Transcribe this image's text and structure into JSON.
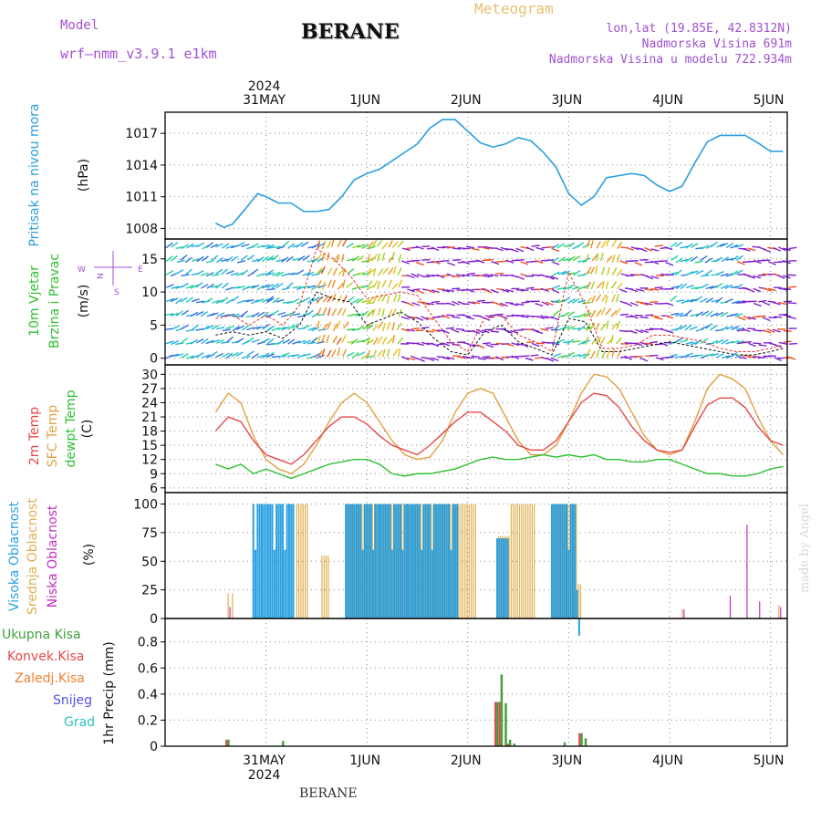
{
  "header": {
    "title": "BERANE",
    "meteogram": "Meteogram",
    "model_label": "Model",
    "model_name": "wrf—nmm_v3.9.1 e1km",
    "lonlat": "lon,lat (19.85E, 42.8312N)",
    "elevation": "Nadmorska Visina 691m",
    "elevation_model": "Nadmorska Visina u modelu 722.934m",
    "footer": "BERANE",
    "made_by": "made by Angel"
  },
  "time_axis": {
    "year": "2024",
    "days": [
      "31MAY",
      "1JUN",
      "2JUN",
      "3JUN",
      "4JUN",
      "5JUN"
    ]
  },
  "colors": {
    "pressure": "#2a9fe0",
    "t2m": "#e84848",
    "tsfc": "#e0a040",
    "dewpt": "#30c030",
    "cloud_high": "#2aa0e0",
    "cloud_mid": "#e0b050",
    "cloud_low": "#c030c0",
    "precip_total": "#40a040",
    "precip_conv": "#e84848",
    "precip_frozen": "#f08030",
    "snow": "#5050e0",
    "grad": "#30c0c0"
  },
  "chart_data": [
    {
      "type": "line",
      "name": "pressure",
      "ylabels": [
        "Pritisak na nivou mora",
        "(hPa)"
      ],
      "yticks": [
        1008,
        1011,
        1014,
        1017
      ],
      "ylim": [
        1007,
        1019
      ],
      "x_hours": [
        0,
        2,
        4,
        7,
        10,
        12,
        15,
        18,
        21,
        24,
        27,
        30,
        33,
        36,
        39,
        42,
        45,
        48,
        51,
        54,
        57,
        60,
        63,
        66,
        69,
        72,
        75,
        78,
        81,
        84,
        87,
        90,
        93,
        96,
        99,
        102,
        105,
        108,
        111,
        114,
        117,
        120,
        123,
        126,
        129,
        132,
        135
      ],
      "values": [
        1008.5,
        1008.1,
        1008.4,
        1009.8,
        1011.3,
        1011.0,
        1010.4,
        1010.4,
        1009.6,
        1009.6,
        1009.8,
        1011.0,
        1012.6,
        1013.2,
        1013.6,
        1014.4,
        1015.2,
        1016.0,
        1017.5,
        1018.3,
        1018.3,
        1017.2,
        1016.1,
        1015.7,
        1016.0,
        1016.6,
        1016.3,
        1015.2,
        1013.8,
        1011.3,
        1010.2,
        1011.0,
        1012.8,
        1013.0,
        1013.2,
        1013.0,
        1012.1,
        1011.5,
        1012.0,
        1014.2,
        1016.2,
        1016.8,
        1016.8,
        1016.8,
        1016.1,
        1015.3,
        1015.3
      ]
    },
    {
      "type": "line",
      "name": "wind",
      "ylabels": [
        "10m Vjetar",
        "Brzina i Pravac",
        "(m/s)"
      ],
      "yticks": [
        0,
        5,
        10,
        15
      ],
      "ylim": [
        -1,
        18
      ],
      "compass": {
        "n": "N",
        "w": "W",
        "e": "E",
        "s": "S"
      },
      "x_hours": [
        0,
        4,
        8,
        12,
        16,
        20,
        24,
        28,
        32,
        36,
        40,
        44,
        48,
        52,
        56,
        60,
        64,
        68,
        72,
        76,
        80,
        84,
        88,
        92,
        96,
        100,
        104,
        108,
        112,
        116,
        120,
        124,
        128,
        132,
        135
      ],
      "speed": [
        3.5,
        4.0,
        3.5,
        4.0,
        3.0,
        5.0,
        10.0,
        9.0,
        8.5,
        5.0,
        6.0,
        7.0,
        5.5,
        3.0,
        1.0,
        0.5,
        4.0,
        5.0,
        2.5,
        1.5,
        0.5,
        6.0,
        5.5,
        1.0,
        1.0,
        1.5,
        2.0,
        2.5,
        2.0,
        1.5,
        1.0,
        0.5,
        0.5,
        1.0,
        1.5
      ],
      "gust": [
        6.0,
        6.5,
        5.0,
        6.5,
        5.0,
        8.0,
        16.5,
        15.0,
        12.5,
        9.0,
        9.5,
        10.0,
        9.5,
        6.0,
        2.5,
        1.0,
        6.0,
        6.5,
        3.5,
        2.5,
        1.0,
        13.0,
        8.0,
        1.5,
        1.5,
        2.0,
        3.5,
        3.5,
        3.0,
        2.5,
        1.5,
        1.0,
        1.0,
        1.5,
        2.0
      ]
    },
    {
      "type": "line",
      "name": "temperature",
      "ylabels": [
        "2m Temp",
        "SFC Temp",
        "dewpt Temp",
        "(C)"
      ],
      "yticks": [
        6,
        9,
        12,
        15,
        18,
        21,
        24,
        27,
        30
      ],
      "ylim": [
        5,
        32
      ],
      "x_hours": [
        0,
        3,
        6,
        9,
        12,
        15,
        18,
        21,
        24,
        27,
        30,
        33,
        36,
        39,
        42,
        45,
        48,
        51,
        54,
        57,
        60,
        63,
        66,
        69,
        72,
        75,
        78,
        81,
        84,
        87,
        90,
        93,
        96,
        99,
        102,
        105,
        108,
        111,
        114,
        117,
        120,
        123,
        126,
        129,
        132,
        135
      ],
      "t2m": [
        18,
        21,
        20,
        16,
        13,
        12,
        11,
        13,
        16,
        19,
        21,
        21,
        19.5,
        17,
        15,
        14,
        13,
        15,
        17.5,
        20,
        22,
        22,
        20,
        18,
        15,
        14,
        14,
        16,
        20,
        24,
        26,
        25.5,
        23,
        19,
        16,
        14,
        13.5,
        14,
        19,
        23.5,
        25,
        25,
        23,
        19,
        16,
        15
      ],
      "tsfc": [
        22,
        26,
        24,
        17,
        12,
        10,
        9,
        11,
        15,
        20,
        24,
        26,
        24,
        20,
        16,
        13,
        12,
        12.5,
        16,
        22,
        26,
        27,
        26,
        21,
        16,
        13,
        13,
        15,
        20,
        26,
        30,
        29.5,
        27,
        22,
        17,
        14,
        13,
        14,
        20,
        27,
        30,
        29,
        27,
        21,
        16,
        13
      ],
      "dewpt": [
        11,
        10,
        11,
        9,
        10,
        9,
        8,
        9,
        10,
        11,
        11.5,
        12,
        12,
        11,
        9,
        8.5,
        9,
        9,
        9.5,
        10,
        11,
        12,
        12.5,
        12,
        12,
        12.5,
        13,
        12.5,
        13,
        12.5,
        13,
        12,
        12,
        11.5,
        11.5,
        12,
        12,
        11,
        10,
        9,
        9,
        8.5,
        8.5,
        9,
        10,
        10.5
      ],
      "xmax_hours": 136
    },
    {
      "type": "bar",
      "name": "cloud",
      "ylabels": [
        "Visoka Oblacnost",
        "Srednja Oblacnost",
        "Niska Oblacnost",
        "(%)"
      ],
      "yticks": [
        0,
        25,
        50,
        75,
        100
      ],
      "ylim": [
        0,
        110
      ],
      "series_names": [
        "high",
        "mid",
        "low"
      ],
      "segments": [
        {
          "from": 9,
          "to": 19,
          "high": 100,
          "mid": 0,
          "low": 0
        },
        {
          "from": 19,
          "to": 22,
          "high": 0,
          "mid": 100,
          "low": 0
        },
        {
          "from": 25,
          "to": 27,
          "high": 0,
          "mid": 55,
          "low": 0
        },
        {
          "from": 31,
          "to": 58,
          "high": 100,
          "mid": 100,
          "low": 0
        },
        {
          "from": 58,
          "to": 62,
          "high": 0,
          "mid": 100,
          "low": 0
        },
        {
          "from": 67,
          "to": 70,
          "high": 70,
          "mid": 72,
          "low": 0
        },
        {
          "from": 70,
          "to": 76,
          "high": 0,
          "mid": 100,
          "low": 0
        },
        {
          "from": 80,
          "to": 86,
          "high": 100,
          "mid": 100,
          "low": 0
        },
        {
          "from": 86,
          "to": 87,
          "high": 25,
          "mid": 30,
          "low": 0
        }
      ],
      "spikes": [
        {
          "x": 3,
          "mid": 22,
          "low": 10
        },
        {
          "x": 4,
          "mid": 22,
          "low": 0
        },
        {
          "x": 126,
          "mid": 0,
          "low": 82
        },
        {
          "x": 122,
          "mid": 0,
          "low": 20
        },
        {
          "x": 129,
          "mid": 0,
          "low": 15
        },
        {
          "x": 111,
          "mid": 8,
          "low": 8
        },
        {
          "x": 134,
          "mid": 12,
          "low": 10
        }
      ]
    },
    {
      "type": "bar",
      "name": "precipitation",
      "ylabels": [
        "Ukupna Kisa",
        "Konvek.Kisa",
        "Zaledj.Kisa",
        "Snijeg",
        "Grad",
        "1hr Precip (mm)"
      ],
      "yticks": [
        0,
        0.2,
        0.4,
        0.6,
        0.8
      ],
      "ylim": [
        0,
        0.98
      ],
      "x_hours": [
        3,
        16,
        66,
        67,
        68,
        69,
        70,
        71,
        83,
        87,
        88
      ],
      "total": [
        0.05,
        0.04,
        0.0,
        0.34,
        0.55,
        0.33,
        0.05,
        0.02,
        0.03,
        0.1,
        0.06
      ],
      "conv": [
        0.05,
        0.0,
        0.0,
        0.34,
        0.34,
        0.0,
        0.02,
        0.0,
        0.0,
        0.1,
        0.0
      ]
    }
  ]
}
